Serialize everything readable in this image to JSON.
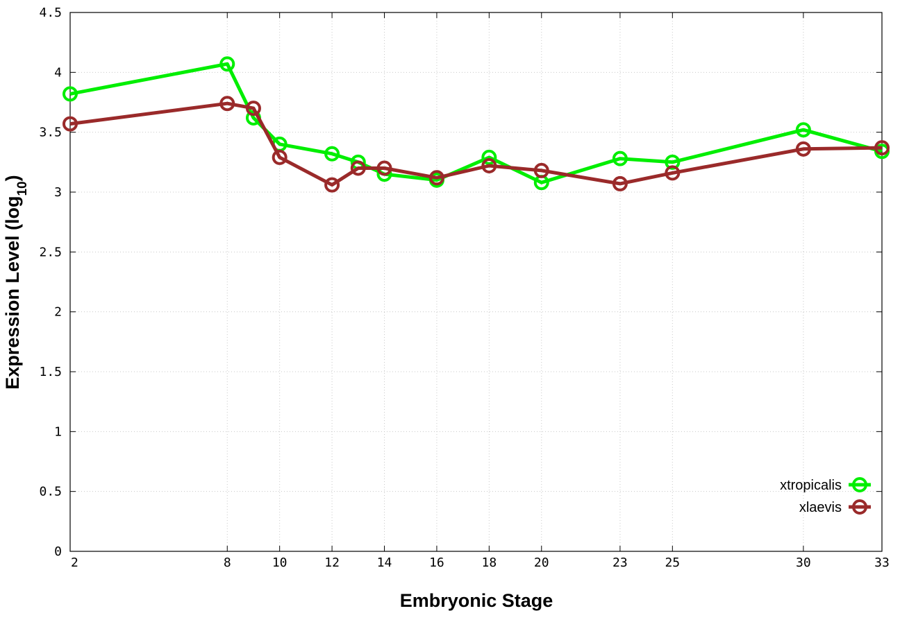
{
  "chart_data": {
    "type": "line",
    "title": "",
    "xlabel": "Embryonic Stage",
    "ylabel_main": "Expression Level (log",
    "ylabel_sub": "10",
    "ylabel_close": ")",
    "x": [
      2,
      8,
      9,
      10,
      12,
      13,
      14,
      16,
      18,
      20,
      23,
      25,
      30,
      33
    ],
    "x_ticks": [
      2,
      8,
      10,
      12,
      14,
      16,
      18,
      20,
      23,
      25,
      30,
      33
    ],
    "x_tick_labels": [
      "2",
      "8",
      "10",
      "12",
      "14",
      "16",
      "18",
      "20",
      "23",
      "25",
      "30",
      "33"
    ],
    "y_ticks": [
      0,
      0.5,
      1,
      1.5,
      2,
      2.5,
      3,
      3.5,
      4,
      4.5
    ],
    "y_tick_labels": [
      "0",
      "0.5",
      "1",
      "1.5",
      "2",
      "2.5",
      "3",
      "3.5",
      "4",
      "4.5"
    ],
    "xlim": [
      2,
      33
    ],
    "ylim": [
      0,
      4.5
    ],
    "grid": true,
    "legend_position": "bottom-right",
    "series": [
      {
        "name": "xtropicalis",
        "color": "#00ee00",
        "values": [
          3.82,
          4.07,
          3.62,
          3.4,
          3.32,
          3.25,
          3.15,
          3.1,
          3.29,
          3.08,
          3.28,
          3.25,
          3.52,
          3.34
        ]
      },
      {
        "name": "xlaevis",
        "color": "#9a2a2a",
        "values": [
          3.57,
          3.74,
          3.7,
          3.29,
          3.06,
          3.2,
          3.2,
          3.12,
          3.22,
          3.18,
          3.07,
          3.16,
          3.36,
          3.37
        ]
      }
    ]
  }
}
